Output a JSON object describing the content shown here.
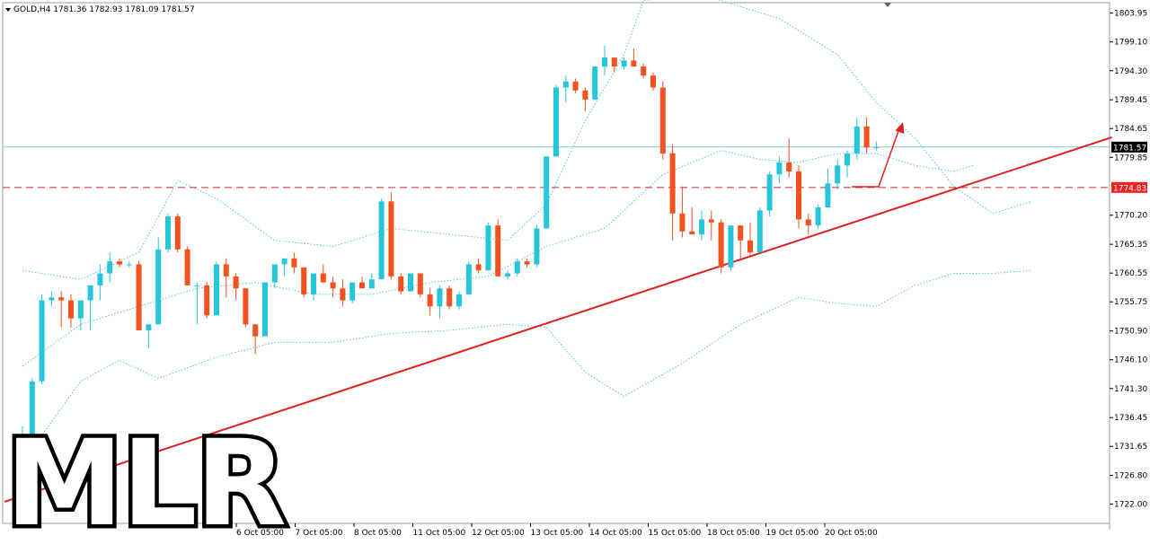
{
  "symbol_info": "GOLD,H4  1781.36 1782.93 1781.09 1781.57",
  "colors": {
    "bull": "#26c6da",
    "bear": "#f4511e",
    "trend": "#e02020",
    "band": "#4fc3f7",
    "hline": "#80cbc4",
    "tag": "#ee2020"
  },
  "price_tags": {
    "current": "1781.57",
    "level": "1774.83"
  },
  "watermark": "MLR",
  "chart_data": {
    "type": "candlestick",
    "title": "GOLD,H4",
    "ohlc_header": {
      "open": 1781.36,
      "high": 1782.93,
      "low": 1781.09,
      "close": 1781.57
    },
    "y_ticks": [
      "1803.95",
      "1799.10",
      "1794.30",
      "1789.45",
      "1784.65",
      "1779.85",
      "1770.20",
      "1765.35",
      "1760.55",
      "1755.75",
      "1750.90",
      "1746.10",
      "1741.30",
      "1736.45",
      "1731.65",
      "1726.80",
      "1722.00"
    ],
    "x_ticks": [
      "6 Oct 05:00",
      "7 Oct 05:00",
      "8 Oct 05:00",
      "11 Oct 05:00",
      "12 Oct 05:00",
      "13 Oct 05:00",
      "14 Oct 05:00",
      "15 Oct 05:00",
      "18 Oct 05:00",
      "19 Oct 05:00",
      "20 Oct 05:00"
    ],
    "ylim": [
      1720.3,
      1804.9
    ],
    "current_price": 1781.57,
    "horizontal_level": 1774.83,
    "trendline": {
      "from": [
        0,
        1723.0
      ],
      "to": [
        112,
        1783.2
      ]
    },
    "candles": [
      [
        1729.0,
        1735.0,
        1726.0,
        1731.5
      ],
      [
        1731.5,
        1743.0,
        1730.5,
        1742.5
      ],
      [
        1742.5,
        1757.0,
        1742.0,
        1756.0
      ],
      [
        1756.0,
        1757.5,
        1755.0,
        1756.5
      ],
      [
        1756.5,
        1757.5,
        1751.5,
        1756.0
      ],
      [
        1756.0,
        1757.0,
        1751.5,
        1753.0
      ],
      [
        1753.0,
        1756.0,
        1751.0,
        1756.0
      ],
      [
        1756.0,
        1758.5,
        1751.0,
        1758.5
      ],
      [
        1758.5,
        1762.0,
        1756.0,
        1760.5
      ],
      [
        1760.5,
        1764.0,
        1759.0,
        1762.5
      ],
      [
        1762.5,
        1763.0,
        1761.5,
        1762.0
      ],
      [
        1762.0,
        1762.5,
        1761.5,
        1762.0
      ],
      [
        1762.0,
        1762.5,
        1751.0,
        1751.0
      ],
      [
        1751.0,
        1752.0,
        1748.0,
        1752.0
      ],
      [
        1752.0,
        1766.5,
        1752.0,
        1764.5
      ],
      [
        1764.5,
        1770.5,
        1764.0,
        1770.0
      ],
      [
        1770.0,
        1770.5,
        1764.0,
        1764.5
      ],
      [
        1764.5,
        1765.0,
        1758.5,
        1758.5
      ],
      [
        1758.5,
        1759.0,
        1752.0,
        1758.5
      ],
      [
        1758.5,
        1759.0,
        1753.0,
        1753.5
      ],
      [
        1753.5,
        1762.5,
        1753.5,
        1762.0
      ],
      [
        1762.0,
        1763.0,
        1756.5,
        1760.0
      ],
      [
        1760.0,
        1760.5,
        1756.0,
        1758.0
      ],
      [
        1758.0,
        1758.0,
        1751.5,
        1752.0
      ],
      [
        1752.0,
        1752.0,
        1747.0,
        1750.0
      ],
      [
        1750.0,
        1759.0,
        1750.0,
        1759.0
      ],
      [
        1759.0,
        1762.0,
        1758.0,
        1762.0
      ],
      [
        1762.0,
        1763.0,
        1760.0,
        1763.0
      ],
      [
        1763.0,
        1764.0,
        1760.5,
        1761.5
      ],
      [
        1761.5,
        1761.5,
        1756.5,
        1757.0
      ],
      [
        1757.0,
        1760.5,
        1756.0,
        1760.5
      ],
      [
        1760.5,
        1762.0,
        1759.0,
        1759.0
      ],
      [
        1759.0,
        1760.0,
        1756.5,
        1758.0
      ],
      [
        1758.0,
        1759.5,
        1755.0,
        1756.0
      ],
      [
        1756.0,
        1759.0,
        1755.5,
        1759.0
      ],
      [
        1759.0,
        1760.0,
        1758.0,
        1758.0
      ],
      [
        1758.0,
        1760.5,
        1758.0,
        1759.5
      ],
      [
        1759.5,
        1773.0,
        1759.5,
        1772.5
      ],
      [
        1772.5,
        1774.0,
        1759.5,
        1760.0
      ],
      [
        1760.0,
        1760.5,
        1757.0,
        1757.5
      ],
      [
        1757.5,
        1760.5,
        1757.5,
        1760.5
      ],
      [
        1760.5,
        1760.5,
        1756.5,
        1757.0
      ],
      [
        1757.0,
        1758.0,
        1753.5,
        1755.0
      ],
      [
        1755.0,
        1758.5,
        1753.0,
        1758.0
      ],
      [
        1758.0,
        1758.5,
        1754.5,
        1755.0
      ],
      [
        1755.0,
        1757.5,
        1754.5,
        1757.0
      ],
      [
        1757.0,
        1762.5,
        1757.0,
        1762.0
      ],
      [
        1762.0,
        1763.0,
        1760.5,
        1761.0
      ],
      [
        1761.0,
        1769.0,
        1761.0,
        1768.5
      ],
      [
        1768.5,
        1769.5,
        1760.0,
        1760.0
      ],
      [
        1760.0,
        1761.0,
        1759.5,
        1760.5
      ],
      [
        1760.5,
        1763.0,
        1760.0,
        1762.5
      ],
      [
        1762.5,
        1763.0,
        1761.5,
        1762.0
      ],
      [
        1762.0,
        1768.5,
        1761.5,
        1768.0
      ],
      [
        1768.0,
        1780.0,
        1768.0,
        1780.0
      ],
      [
        1780.0,
        1792.0,
        1780.0,
        1791.5
      ],
      [
        1791.5,
        1793.5,
        1789.0,
        1792.5
      ],
      [
        1792.5,
        1793.0,
        1790.5,
        1791.0
      ],
      [
        1791.0,
        1791.5,
        1787.5,
        1789.5
      ],
      [
        1789.5,
        1795.0,
        1789.5,
        1795.0
      ],
      [
        1795.0,
        1798.5,
        1793.5,
        1796.5
      ],
      [
        1796.5,
        1796.5,
        1794.0,
        1795.0
      ],
      [
        1795.0,
        1796.5,
        1794.5,
        1796.0
      ],
      [
        1796.0,
        1798.0,
        1795.0,
        1795.0
      ],
      [
        1795.0,
        1795.5,
        1793.0,
        1793.5
      ],
      [
        1793.5,
        1794.0,
        1791.0,
        1791.5
      ],
      [
        1791.5,
        1792.5,
        1779.5,
        1780.5
      ],
      [
        1780.5,
        1782.0,
        1766.0,
        1770.5
      ],
      [
        1770.5,
        1775.0,
        1766.5,
        1767.5
      ],
      [
        1767.5,
        1771.5,
        1767.0,
        1767.0
      ],
      [
        1767.0,
        1771.0,
        1766.0,
        1769.5
      ],
      [
        1769.5,
        1771.0,
        1766.0,
        1769.0
      ],
      [
        1769.0,
        1769.5,
        1760.5,
        1761.5
      ],
      [
        1761.5,
        1768.5,
        1761.0,
        1768.5
      ],
      [
        1768.5,
        1768.5,
        1763.0,
        1766.0
      ],
      [
        1766.0,
        1769.0,
        1763.5,
        1764.0
      ],
      [
        1764.0,
        1771.5,
        1764.0,
        1771.0
      ],
      [
        1771.0,
        1777.5,
        1770.0,
        1777.0
      ],
      [
        1777.0,
        1780.0,
        1775.5,
        1779.0
      ],
      [
        1779.0,
        1783.0,
        1776.5,
        1777.5
      ],
      [
        1777.5,
        1778.5,
        1768.0,
        1769.5
      ],
      [
        1769.5,
        1770.5,
        1767.0,
        1768.5
      ],
      [
        1768.5,
        1772.0,
        1768.0,
        1771.5
      ],
      [
        1771.5,
        1778.0,
        1771.5,
        1775.5
      ],
      [
        1775.5,
        1779.5,
        1774.5,
        1778.5
      ],
      [
        1778.5,
        1781.0,
        1776.5,
        1780.5
      ],
      [
        1780.5,
        1786.5,
        1779.5,
        1785.0
      ],
      [
        1785.0,
        1786.5,
        1780.5,
        1781.5
      ],
      [
        1781.5,
        1782.5,
        1781.0,
        1781.5
      ]
    ],
    "bands": {
      "upper": [
        [
          0,
          1761.0
        ],
        [
          6,
          1759.5
        ],
        [
          12,
          1764.0
        ],
        [
          16,
          1776.0
        ],
        [
          20,
          1773.0
        ],
        [
          26,
          1766.0
        ],
        [
          32,
          1765.0
        ],
        [
          38,
          1768.0
        ],
        [
          44,
          1767.0
        ],
        [
          50,
          1766.0
        ],
        [
          54,
          1772.0
        ],
        [
          58,
          1786.0
        ],
        [
          62,
          1797.0
        ],
        [
          64,
          1806.0
        ],
        [
          70,
          1807.0
        ],
        [
          78,
          1803.0
        ],
        [
          84,
          1797.0
        ],
        [
          88,
          1789.0
        ],
        [
          92,
          1783.0
        ],
        [
          96,
          1775.0
        ],
        [
          100,
          1770.5
        ],
        [
          104,
          1772.5
        ]
      ],
      "middle": [
        [
          0,
          1745.0
        ],
        [
          6,
          1752.0
        ],
        [
          12,
          1755.0
        ],
        [
          18,
          1758.0
        ],
        [
          24,
          1759.0
        ],
        [
          30,
          1757.0
        ],
        [
          36,
          1757.0
        ],
        [
          42,
          1759.0
        ],
        [
          48,
          1760.0
        ],
        [
          54,
          1765.0
        ],
        [
          60,
          1768.0
        ],
        [
          66,
          1777.0
        ],
        [
          72,
          1781.0
        ],
        [
          76,
          1779.5
        ],
        [
          80,
          1779.0
        ],
        [
          84,
          1780.5
        ],
        [
          88,
          1780.5
        ],
        [
          92,
          1778.5
        ],
        [
          94,
          1778.0
        ],
        [
          96,
          1777.5
        ],
        [
          98,
          1778.5
        ]
      ],
      "lower": [
        [
          0,
          1729.0
        ],
        [
          6,
          1742.5
        ],
        [
          10,
          1746.0
        ],
        [
          14,
          1743.0
        ],
        [
          20,
          1746.5
        ],
        [
          26,
          1749.0
        ],
        [
          32,
          1749.0
        ],
        [
          38,
          1750.5
        ],
        [
          44,
          1751.0
        ],
        [
          50,
          1752.0
        ],
        [
          54,
          1751.5
        ],
        [
          58,
          1744.0
        ],
        [
          62,
          1740.0
        ],
        [
          68,
          1745.5
        ],
        [
          74,
          1752.0
        ],
        [
          80,
          1756.5
        ],
        [
          84,
          1755.5
        ],
        [
          88,
          1755.0
        ],
        [
          92,
          1758.5
        ],
        [
          96,
          1760.5
        ],
        [
          100,
          1760.5
        ],
        [
          104,
          1761.0
        ]
      ]
    }
  }
}
